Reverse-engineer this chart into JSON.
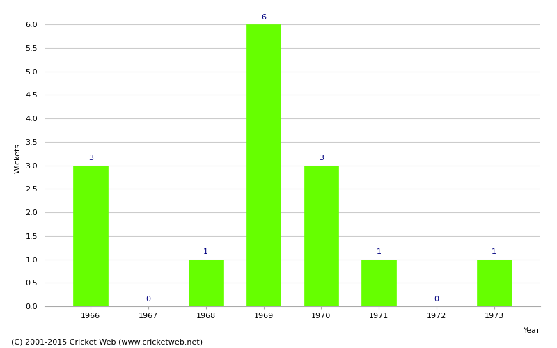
{
  "years": [
    1966,
    1967,
    1968,
    1969,
    1970,
    1971,
    1972,
    1973
  ],
  "wickets": [
    3,
    0,
    1,
    6,
    3,
    1,
    0,
    1
  ],
  "bar_color": "#66ff00",
  "bar_edge_color": "#66ff00",
  "xlabel": "Year",
  "ylabel": "Wickets",
  "ylim": [
    0.0,
    6.3
  ],
  "yticks": [
    0.0,
    0.5,
    1.0,
    1.5,
    2.0,
    2.5,
    3.0,
    3.5,
    4.0,
    4.5,
    5.0,
    5.5,
    6.0
  ],
  "label_color": "#000080",
  "label_fontsize": 8,
  "axis_label_fontsize": 8,
  "tick_fontsize": 8,
  "footer_text": "(C) 2001-2015 Cricket Web (www.cricketweb.net)",
  "footer_fontsize": 8,
  "background_color": "#ffffff",
  "grid_color": "#cccccc",
  "bar_width": 0.6
}
